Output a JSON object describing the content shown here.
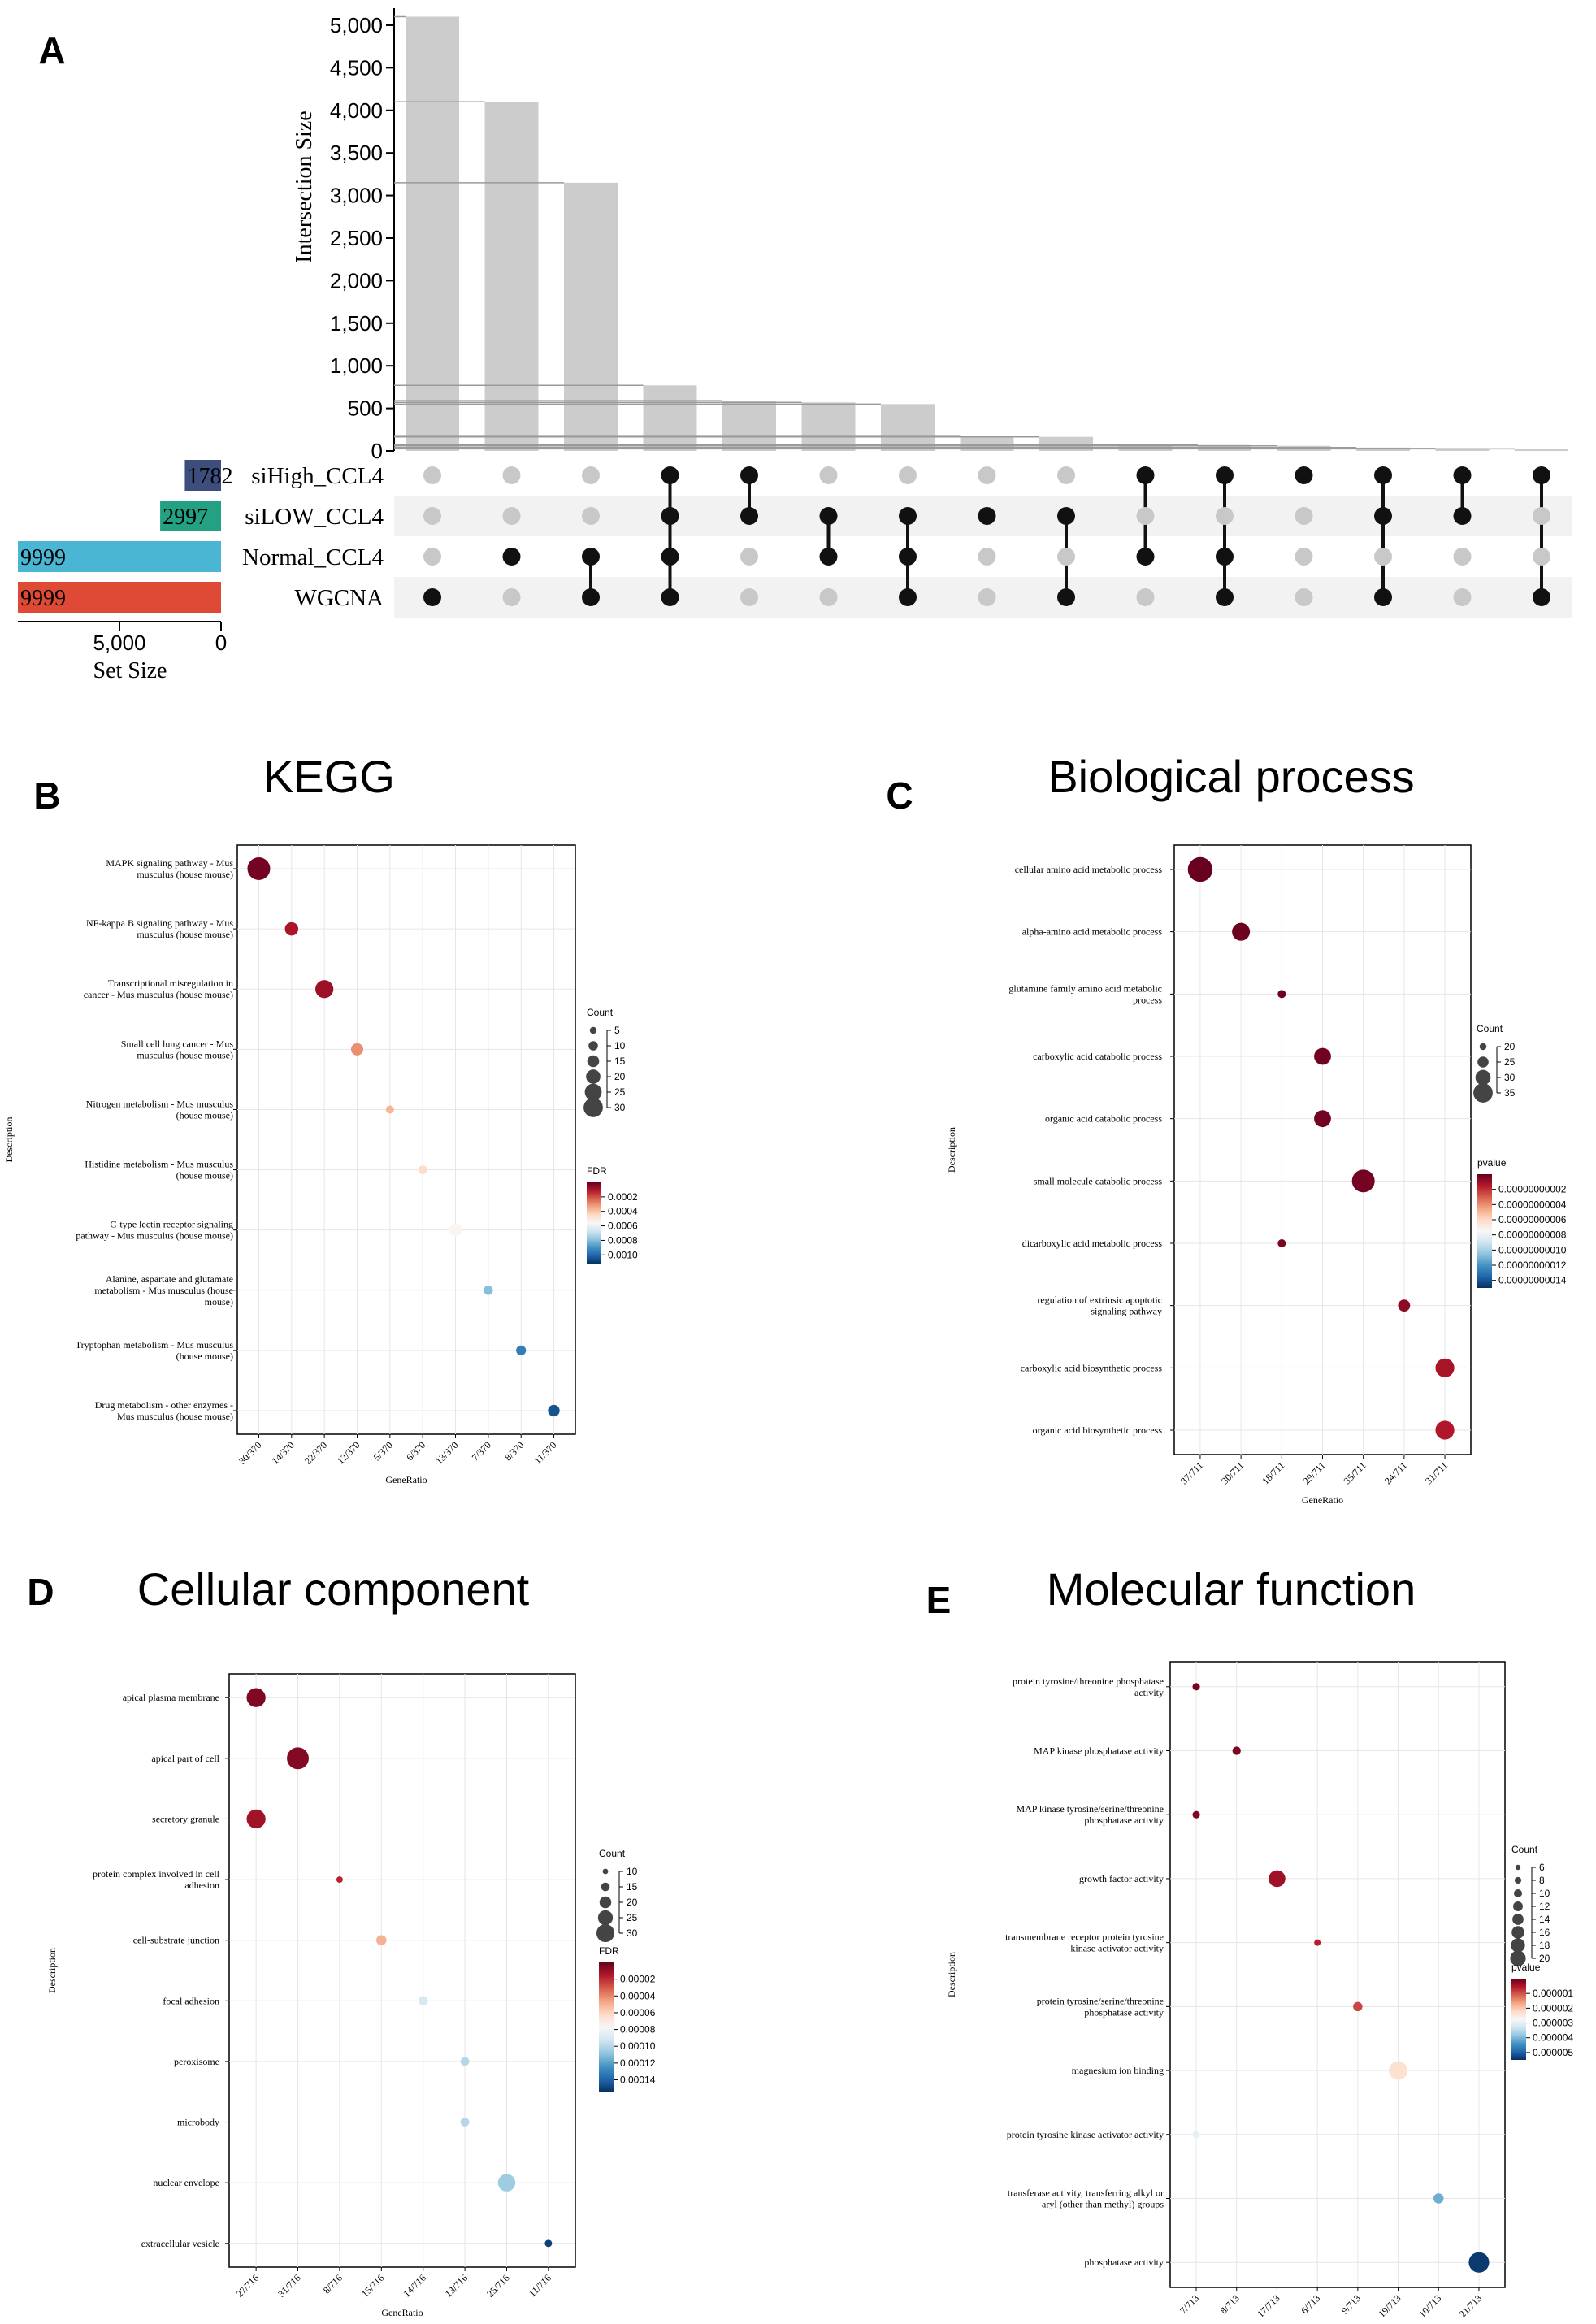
{
  "chart_data": [
    {
      "panel": "A",
      "type": "bar",
      "subtype": "upset",
      "ylabel": "Intersection Size",
      "ylim": [
        0,
        5200
      ],
      "yticks": [
        "0",
        "500",
        "1,000",
        "1,500",
        "2,000",
        "2,500",
        "3,000",
        "3,500",
        "4,000",
        "4,500",
        "5,000"
      ],
      "ytick_values": [
        0,
        500,
        1000,
        1500,
        2000,
        2500,
        3000,
        3500,
        4000,
        4500,
        5000
      ],
      "sets": [
        "siHigh_CCL4",
        "siLOW_CCL4",
        "Normal_CCL4",
        "WGCNA"
      ],
      "set_sizes": [
        1782,
        2997,
        9999,
        9999
      ],
      "set_size_labels": [
        "1782",
        "2997",
        "9999",
        "9999"
      ],
      "set_colors": [
        "#3d4e7d",
        "#24a183",
        "#4bb6d4",
        "#de4a35"
      ],
      "set_size_xlabel": "Set Size",
      "set_size_xticks": [
        "5,000",
        "0"
      ],
      "set_size_xtick_values": [
        5000,
        0
      ],
      "set_size_xlim": [
        0,
        9999
      ],
      "intersection_sizes": [
        5100,
        4100,
        3150,
        770,
        590,
        570,
        550,
        180,
        165,
        75,
        70,
        60,
        40,
        30,
        25
      ],
      "memberships": [
        [
          3
        ],
        [
          2
        ],
        [
          2,
          3
        ],
        [
          0,
          1,
          2,
          3
        ],
        [
          0,
          1
        ],
        [
          1,
          2
        ],
        [
          1,
          2,
          3
        ],
        [
          1
        ],
        [
          1,
          3
        ],
        [
          0,
          2
        ],
        [
          0,
          2,
          3
        ],
        [
          0
        ],
        [
          0,
          1,
          3
        ],
        [
          0,
          1
        ],
        [
          0,
          3
        ]
      ]
    },
    {
      "panel": "B",
      "type": "scatter",
      "subtype": "dotplot",
      "title": "KEGG",
      "xlabel": "GeneRatio",
      "ylabel": "Description",
      "categories": [
        "MAPK signaling pathway - Mus musculus (house mouse)",
        "NF-kappa B signaling pathway - Mus musculus (house mouse)",
        "Transcriptional misregulation in cancer - Mus musculus (house mouse)",
        "Small cell lung cancer - Mus musculus (house mouse)",
        "Nitrogen metabolism - Mus musculus (house mouse)",
        "Histidine metabolism - Mus musculus (house mouse)",
        "C-type lectin receptor signaling pathway - Mus musculus (house mouse)",
        "Alanine, aspartate and glutamate metabolism - Mus musculus (house mouse)",
        "Tryptophan metabolism - Mus musculus (house mouse)",
        "Drug metabolism - other enzymes - Mus musculus (house mouse)"
      ],
      "x": [
        "30/370",
        "14/370",
        "22/370",
        "12/370",
        "5/370",
        "6/370",
        "13/370",
        "7/370",
        "8/370",
        "11/370"
      ],
      "count": [
        30,
        14,
        22,
        12,
        5,
        6,
        13,
        7,
        8,
        11
      ],
      "color_value": [
        2e-05,
        0.0001,
        8e-05,
        0.0003,
        0.00037,
        0.00045,
        0.00055,
        0.0008,
        0.00095,
        0.00105
      ],
      "size_legend_title": "Count",
      "size_legend": [
        "5",
        "10",
        "15",
        "20",
        "25",
        "30"
      ],
      "size_legend_values": [
        5,
        10,
        15,
        20,
        25,
        30
      ],
      "color_legend_title": "FDR",
      "color_legend": [
        "0.0002",
        "0.0004",
        "0.0006",
        "0.0008",
        "0.0010"
      ],
      "color_legend_values": [
        0.0002,
        0.0004,
        0.0006,
        0.0008,
        0.001
      ],
      "color_range": [
        0.0,
        0.00112
      ]
    },
    {
      "panel": "C",
      "type": "scatter",
      "subtype": "dotplot",
      "title": "Biological process",
      "xlabel": "GeneRatio",
      "ylabel": "Description",
      "categories": [
        "cellular amino acid metabolic process",
        "alpha-amino acid metabolic process",
        "glutamine family amino acid metabolic process",
        "carboxylic acid catabolic process",
        "organic acid catabolic process",
        "small molecule catabolic process",
        "dicarboxylic acid metabolic process",
        "regulation of extrinsic apoptotic signaling pathway",
        "carboxylic acid biosynthetic process",
        "organic acid biosynthetic process"
      ],
      "x": [
        "37/711",
        "30/711",
        "18/711",
        "29/711",
        "29/711",
        "35/711",
        "18/711",
        "24/711",
        "31/711",
        "31/711"
      ],
      "x_categories": [
        "37/711",
        "30/711",
        "18/711",
        "29/711",
        "35/711",
        "24/711",
        "31/711"
      ],
      "count": [
        37,
        30,
        18,
        29,
        29,
        35,
        18,
        24,
        31,
        31
      ],
      "color_value": [
        1e-13,
        1e-12,
        1.5e-12,
        2e-12,
        2.2e-12,
        2.5e-12,
        4e-12,
        7.5e-12,
        1.3e-11,
        1.45e-11
      ],
      "size_legend_title": "Count",
      "size_legend": [
        "20",
        "25",
        "30",
        "35"
      ],
      "size_legend_values": [
        20,
        25,
        30,
        35
      ],
      "color_legend_title": "pvalue",
      "color_legend": [
        "0.00000000002",
        "0.00000000004",
        "0.00000000006",
        "0.00000000008",
        "0.00000000010",
        "0.00000000012",
        "0.00000000014"
      ],
      "color_legend_values": [
        2e-11,
        4e-11,
        6e-11,
        8e-11,
        1e-10,
        1.2e-10,
        1.4e-10
      ],
      "color_range": [
        0,
        1.5e-10
      ],
      "color_scale_note": "scaled"
    },
    {
      "panel": "D",
      "type": "scatter",
      "subtype": "dotplot",
      "title": "Cellular component",
      "xlabel": "GeneRatio",
      "ylabel": "Description",
      "categories": [
        "apical plasma membrane",
        "apical part of cell",
        "secretory granule",
        "protein complex involved in cell adhesion",
        "cell-substrate junction",
        "focal adhesion",
        "peroxisome",
        "microbody",
        "nuclear envelope",
        "extracellular vesicle"
      ],
      "x": [
        "27/716",
        "31/716",
        "27/716",
        "8/716",
        "15/716",
        "14/716",
        "13/716",
        "13/716",
        "25/716",
        "11/716"
      ],
      "x_categories": [
        "27/716",
        "31/716",
        "8/716",
        "15/716",
        "14/716",
        "13/716",
        "25/716",
        "11/716"
      ],
      "count": [
        27,
        31,
        27,
        8,
        15,
        14,
        13,
        13,
        25,
        11
      ],
      "color_value": [
        5e-06,
        6e-06,
        1.2e-05,
        1.8e-05,
        5e-05,
        9e-05,
        0.0001,
        0.0001,
        0.000105,
        0.00015
      ],
      "size_legend_title": "Count",
      "size_legend": [
        "10",
        "15",
        "20",
        "25",
        "30"
      ],
      "size_legend_values": [
        10,
        15,
        20,
        25,
        30
      ],
      "color_legend_title": "FDR",
      "color_legend": [
        "0.00002",
        "0.00004",
        "0.00006",
        "0.00008",
        "0.00010",
        "0.00012",
        "0.00014"
      ],
      "color_legend_values": [
        2e-05,
        4e-05,
        6e-05,
        8e-05,
        0.0001,
        0.00012,
        0.00014
      ],
      "color_range": [
        0.0,
        0.000155
      ]
    },
    {
      "panel": "E",
      "type": "scatter",
      "subtype": "dotplot",
      "title": "Molecular function",
      "xlabel": "GeneRatio",
      "ylabel": "Description",
      "categories": [
        "protein tyrosine/threonine phosphatase activity",
        "MAP kinase phosphatase activity",
        "MAP kinase tyrosine/serine/threonine phosphatase activity",
        "growth factor activity",
        "transmembrane receptor protein tyrosine kinase activator activity",
        "protein tyrosine/serine/threonine phosphatase activity",
        "magnesium ion binding",
        "protein tyrosine kinase activator activity",
        "transferase activity, transferring alkyl or aryl (other than methyl) groups",
        "phosphatase activity"
      ],
      "x": [
        "7/713",
        "8/713",
        "7/713",
        "17/713",
        "6/713",
        "9/713",
        "19/713",
        "7/713",
        "10/713",
        "21/713"
      ],
      "x_categories": [
        "7/713",
        "8/713",
        "17/713",
        "6/713",
        "9/713",
        "19/713",
        "10/713",
        "21/713"
      ],
      "count": [
        7,
        8,
        7,
        17,
        6,
        9,
        19,
        7,
        10,
        21
      ],
      "color_value": [
        1e-07,
        1.5e-07,
        2e-07,
        4e-07,
        6e-07,
        9e-07,
        2.3e-06,
        3e-06,
        4.1e-06,
        5.4e-06
      ],
      "size_legend_title": "Count",
      "size_legend": [
        "6",
        "8",
        "10",
        "12",
        "14",
        "16",
        "18",
        "20"
      ],
      "size_legend_values": [
        6,
        8,
        10,
        12,
        14,
        16,
        18,
        20
      ],
      "color_legend_title": "pvalue",
      "color_legend": [
        "0.000001",
        "0.000002",
        "0.000003",
        "0.000004",
        "0.000005"
      ],
      "color_legend_values": [
        1e-06,
        2e-06,
        3e-06,
        4e-06,
        5e-06
      ],
      "color_range": [
        0.0,
        5.5e-06
      ]
    }
  ],
  "panel_letters": [
    "A",
    "B",
    "C",
    "D",
    "E"
  ],
  "colors": {
    "diverging": [
      "#67001f",
      "#b2182b",
      "#d6604d",
      "#f4a582",
      "#fddbc7",
      "#f7f7f7",
      "#d1e5f0",
      "#92c5de",
      "#4393c3",
      "#2166ac",
      "#053061"
    ],
    "upset_bar": "#cccccc",
    "upset_dot_active": "#111111",
    "upset_dot_inactive": "#c8c8c8",
    "upset_band": "#f2f2f2"
  }
}
